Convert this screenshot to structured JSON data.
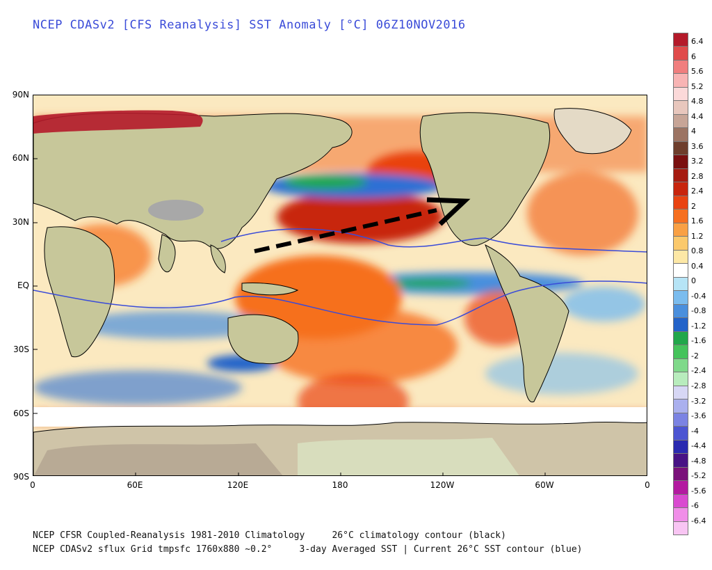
{
  "title": "NCEP CDASv2 [CFS Reanalysis] SST Anomaly [°C] 06Z10NOV2016",
  "footer": {
    "line1": "NCEP CFSR Coupled-Reanalysis 1981-2010 Climatology     26°C climatology contour (black)",
    "line2": "NCEP CDASv2 sflux Grid tmpsfc 1760x880 ~0.2°     3-day Averaged SST | Current 26°C SST contour (blue)"
  },
  "axes": {
    "lat_labels": [
      "90N",
      "60N",
      "30N",
      "EQ",
      "30S",
      "60S",
      "90S"
    ],
    "lon_labels": [
      "0",
      "60E",
      "120E",
      "180",
      "120W",
      "60W",
      "0"
    ]
  },
  "legend": {
    "labels": [
      "6.4",
      "6",
      "5.6",
      "5.2",
      "4.8",
      "4.4",
      "4",
      "3.6",
      "3.2",
      "2.8",
      "2.4",
      "2",
      "1.6",
      "1.2",
      "0.8",
      "0.4",
      "0",
      "-0.4",
      "-0.8",
      "-1.2",
      "-1.6",
      "-2",
      "-2.4",
      "-2.8",
      "-3.2",
      "-3.6",
      "-4",
      "-4.4",
      "-4.8",
      "-5.2",
      "-5.6",
      "-6",
      "-6.4"
    ],
    "colors": [
      "#b41a2a",
      "#e04b4b",
      "#f07e7e",
      "#f8b4b4",
      "#fbd9d9",
      "#e8c7bd",
      "#c7a597",
      "#9c7463",
      "#6e3e2c",
      "#7a1010",
      "#a51b10",
      "#c8250d",
      "#e94311",
      "#f66f1f",
      "#f9a044",
      "#fbc96c",
      "#fde8a6",
      "#ffffff",
      "#b6e4f6",
      "#7bbcee",
      "#4a8fdd",
      "#2363c9",
      "#21a74a",
      "#45c35b",
      "#7fd98a",
      "#b8ecbd",
      "#d7d7f5",
      "#aab0ee",
      "#7b83e3",
      "#4c55d2",
      "#2a2ab0",
      "#481385",
      "#7a117a",
      "#b31aa0",
      "#d94ad0",
      "#f08ee8",
      "#f8c5f3"
    ]
  },
  "annotations": {
    "arrow": "dashed black arrow from western Pacific toward North America"
  }
}
